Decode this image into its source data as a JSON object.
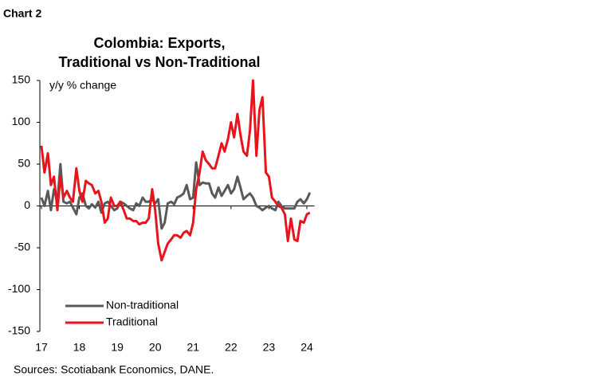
{
  "chart_data": {
    "type": "line",
    "label": "Chart 2",
    "title": "Colombia: Exports,",
    "subtitle": "Traditional vs Non-Traditional",
    "y_label": "y/y % change",
    "source": "Sources: Scotiabank Economics, DANE.",
    "xlim": [
      17,
      24.2
    ],
    "xticks": [
      17,
      18,
      19,
      20,
      21,
      22,
      23,
      24
    ],
    "ylim": [
      -150,
      150
    ],
    "yticks": [
      -150,
      -100,
      -50,
      0,
      50,
      100,
      150
    ],
    "x": [
      17,
      17.08,
      17.17,
      17.25,
      17.33,
      17.42,
      17.5,
      17.58,
      17.67,
      17.75,
      17.83,
      17.92,
      18,
      18.08,
      18.17,
      18.25,
      18.33,
      18.42,
      18.5,
      18.58,
      18.67,
      18.75,
      18.83,
      18.92,
      19,
      19.08,
      19.17,
      19.25,
      19.33,
      19.42,
      19.5,
      19.58,
      19.67,
      19.75,
      19.83,
      19.92,
      20,
      20.08,
      20.17,
      20.25,
      20.33,
      20.42,
      20.5,
      20.58,
      20.67,
      20.75,
      20.83,
      20.92,
      21,
      21.08,
      21.17,
      21.25,
      21.33,
      21.42,
      21.5,
      21.58,
      21.67,
      21.75,
      21.83,
      21.92,
      22,
      22.08,
      22.17,
      22.25,
      22.33,
      22.42,
      22.5,
      22.58,
      22.67,
      22.75,
      22.83,
      22.92,
      23,
      23.08,
      23.17,
      23.25,
      23.33,
      23.42,
      23.5,
      23.58,
      23.67,
      23.75,
      23.83,
      23.92,
      24,
      24.08
    ],
    "series": [
      {
        "name": "Non-traditional",
        "color": "#595959",
        "values": [
          10,
          0,
          18,
          -5,
          20,
          5,
          50,
          5,
          3,
          5,
          -2,
          -10,
          10,
          15,
          0,
          -3,
          2,
          -2,
          5,
          -8,
          3,
          5,
          0,
          -5,
          -3,
          5,
          3,
          0,
          -3,
          -5,
          3,
          0,
          10,
          5,
          5,
          8,
          3,
          8,
          -27,
          -20,
          3,
          5,
          2,
          10,
          12,
          15,
          25,
          8,
          10,
          52,
          25,
          28,
          27,
          27,
          15,
          10,
          22,
          12,
          18,
          25,
          15,
          20,
          35,
          22,
          8,
          12,
          15,
          10,
          0,
          -2,
          -5,
          -2,
          0,
          -3,
          -5,
          5,
          0,
          -3,
          -3,
          -3,
          -3,
          5,
          8,
          3,
          8,
          16
        ]
      },
      {
        "name": "Traditional",
        "color": "#e8141c",
        "values": [
          72,
          40,
          63,
          25,
          35,
          -5,
          35,
          10,
          18,
          10,
          5,
          45,
          18,
          5,
          30,
          27,
          25,
          15,
          18,
          5,
          -20,
          -15,
          10,
          0,
          0,
          5,
          -5,
          -15,
          -15,
          -18,
          -18,
          -22,
          -20,
          -20,
          -15,
          20,
          -5,
          -45,
          -65,
          -55,
          -45,
          -40,
          -35,
          -35,
          -38,
          -32,
          -30,
          -35,
          -20,
          20,
          40,
          65,
          55,
          50,
          45,
          45,
          60,
          75,
          65,
          80,
          100,
          82,
          110,
          85,
          65,
          60,
          90,
          150,
          60,
          115,
          130,
          40,
          35,
          10,
          5,
          0,
          -2,
          -10,
          -42,
          -15,
          -40,
          -42,
          -18,
          -20,
          -10,
          -8
        ]
      }
    ]
  }
}
